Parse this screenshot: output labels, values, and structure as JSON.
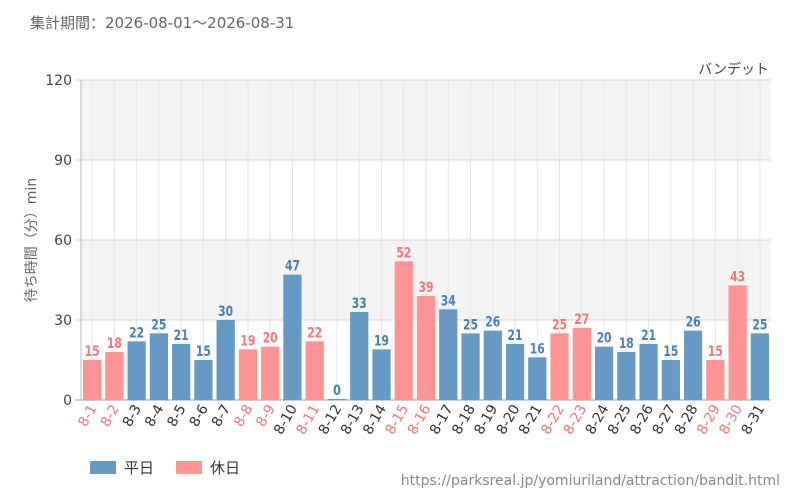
{
  "header": {
    "period": "集計期間：2026-08-01～2026-08-31"
  },
  "chart_data": {
    "type": "bar",
    "title": "バンデット",
    "ylabel": "待ち時間（分）min",
    "xlabel": "",
    "ylim": [
      0,
      120
    ],
    "yticks": [
      0,
      30,
      60,
      90,
      120
    ],
    "grid": true,
    "categories": [
      "8-1",
      "8-2",
      "8-3",
      "8-4",
      "8-5",
      "8-6",
      "8-7",
      "8-8",
      "8-9",
      "8-10",
      "8-11",
      "8-12",
      "8-13",
      "8-14",
      "8-15",
      "8-16",
      "8-17",
      "8-18",
      "8-19",
      "8-20",
      "8-21",
      "8-22",
      "8-23",
      "8-24",
      "8-25",
      "8-26",
      "8-27",
      "8-28",
      "8-29",
      "8-30",
      "8-31"
    ],
    "values": [
      15,
      18,
      22,
      25,
      21,
      15,
      30,
      19,
      20,
      47,
      22,
      0,
      33,
      19,
      52,
      39,
      34,
      25,
      26,
      21,
      16,
      25,
      27,
      20,
      18,
      21,
      15,
      26,
      15,
      43,
      25
    ],
    "day_type": [
      "holiday",
      "holiday",
      "weekday",
      "weekday",
      "weekday",
      "weekday",
      "weekday",
      "holiday",
      "holiday",
      "weekday",
      "holiday",
      "weekday",
      "weekday",
      "weekday",
      "holiday",
      "holiday",
      "weekday",
      "weekday",
      "weekday",
      "weekday",
      "weekday",
      "holiday",
      "holiday",
      "weekday",
      "weekday",
      "weekday",
      "weekday",
      "weekday",
      "holiday",
      "holiday",
      "weekday"
    ],
    "series": [
      {
        "name": "平日",
        "key": "weekday",
        "color": "#6699c4"
      },
      {
        "name": "休日",
        "key": "holiday",
        "color": "#ff9494"
      }
    ],
    "label_colors": {
      "weekday": "#4a7fb0",
      "holiday": "#f07878"
    },
    "legend_position": "bottom-left"
  },
  "footer": {
    "source_url": "https://parksreal.jp/yomiuriland/attraction/bandit.html"
  }
}
